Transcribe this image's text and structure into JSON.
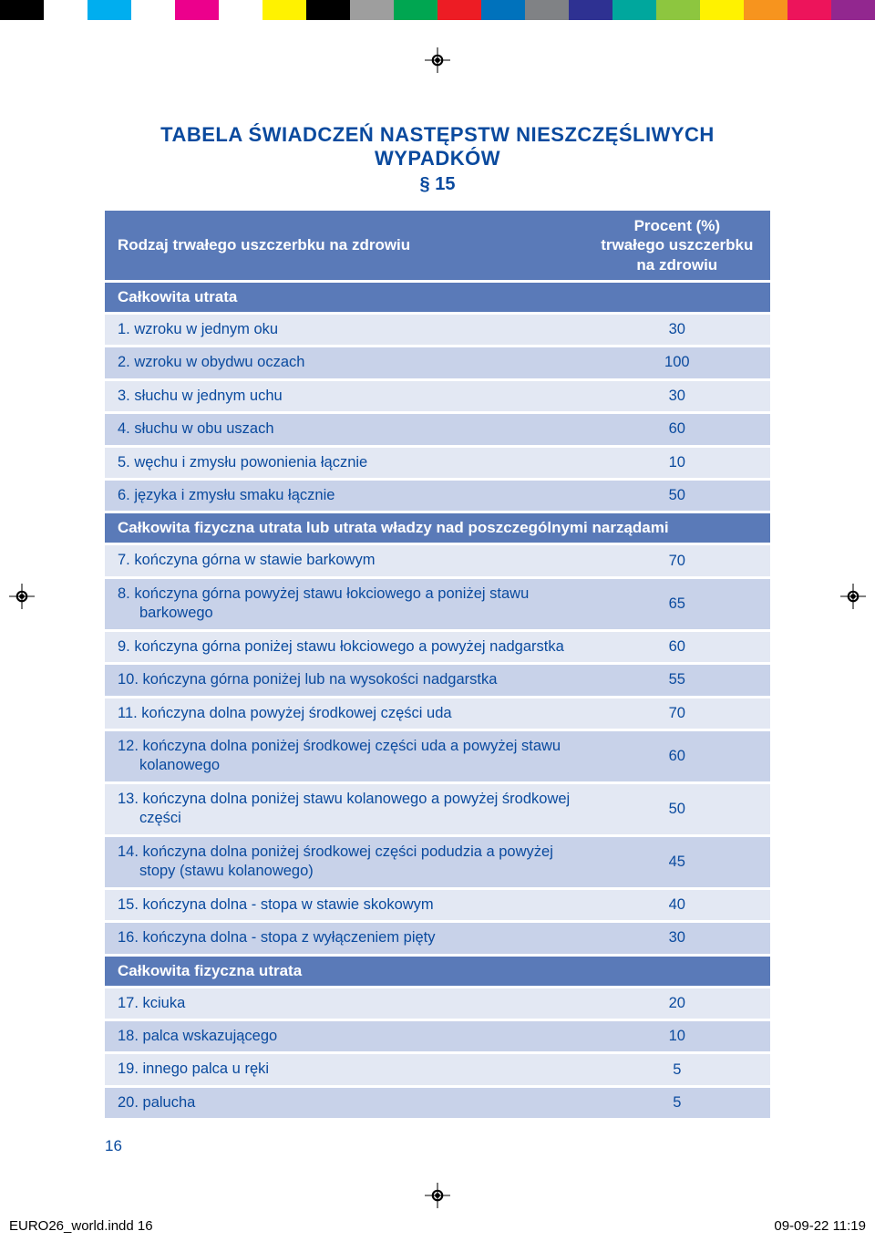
{
  "color_strip": [
    "#000000",
    "#ffffff",
    "#00aeef",
    "#ffffff",
    "#ec008c",
    "#ffffff",
    "#fff200",
    "#000000",
    "#9e9e9e",
    "#00a651",
    "#ed1c24",
    "#0072bc",
    "#808285",
    "#2e3192",
    "#00a79d",
    "#8dc63f",
    "#fff200",
    "#f7941e",
    "#ed145b",
    "#92278f"
  ],
  "title": "TABELA ŚWIADCZEŃ NASTĘPSTW NIESZCZĘŚLIWYCH WYPADKÓW",
  "section_num": "§ 15",
  "header": {
    "col_label": "Rodzaj trwałego uszczerbku na zdrowiu",
    "col_value_line1": "Procent (%)",
    "col_value_line2": "trwałego uszczerbku",
    "col_value_line3": "na zdrowiu"
  },
  "subheaders": {
    "s1": "Całkowita utrata",
    "s2": "Całkowita fizyczna utrata lub utrata władzy nad poszczególnymi narządami",
    "s3": "Całkowita fizyczna utrata"
  },
  "rows": {
    "r1": {
      "label": "1. wzroku w jednym oku",
      "value": "30"
    },
    "r2": {
      "label": "2. wzroku w obydwu oczach",
      "value": "100"
    },
    "r3": {
      "label": "3. słuchu w jednym uchu",
      "value": "30"
    },
    "r4": {
      "label": "4. słuchu w obu uszach",
      "value": "60"
    },
    "r5": {
      "label": "5. węchu i zmysłu powonienia łącznie",
      "value": "10"
    },
    "r6": {
      "label": "6. języka i zmysłu smaku łącznie",
      "value": "50"
    },
    "r7": {
      "label": "7. kończyna górna w stawie barkowym",
      "value": "70"
    },
    "r8": {
      "label_line1": "8. kończyna górna powyżej stawu łokciowego a poniżej stawu",
      "label_line2": "barkowego",
      "value": "65"
    },
    "r9": {
      "label": "9. kończyna górna poniżej stawu łokciowego a powyżej nadgarstka",
      "value": "60"
    },
    "r10": {
      "label": "10. kończyna górna poniżej lub na wysokości nadgarstka",
      "value": "55"
    },
    "r11": {
      "label": "11. kończyna dolna powyżej środkowej części uda",
      "value": "70"
    },
    "r12": {
      "label_line1": "12. kończyna dolna poniżej środkowej części uda a powyżej stawu",
      "label_line2": "kolanowego",
      "value": "60"
    },
    "r13": {
      "label_line1": "13. kończyna dolna poniżej stawu kolanowego a powyżej środkowej",
      "label_line2": "części",
      "value": "50"
    },
    "r14": {
      "label_line1": "14. kończyna dolna poniżej środkowej części podudzia a powyżej",
      "label_line2": "stopy (stawu kolanowego)",
      "value": "45"
    },
    "r15": {
      "label": "15. kończyna dolna - stopa w stawie skokowym",
      "value": "40"
    },
    "r16": {
      "label": "16. kończyna dolna - stopa z wyłączeniem pięty",
      "value": "30"
    },
    "r17": {
      "label": "17. kciuka",
      "value": "20"
    },
    "r18": {
      "label": "18. palca wskazującego",
      "value": "10"
    },
    "r19": {
      "label": "19. innego palca u ręki",
      "value": "5"
    },
    "r20": {
      "label": "20. palucha",
      "value": "5"
    }
  },
  "page_number": "16",
  "footer": {
    "left": "EURO26_world.indd   16",
    "right": "09-09-22   11:19"
  }
}
